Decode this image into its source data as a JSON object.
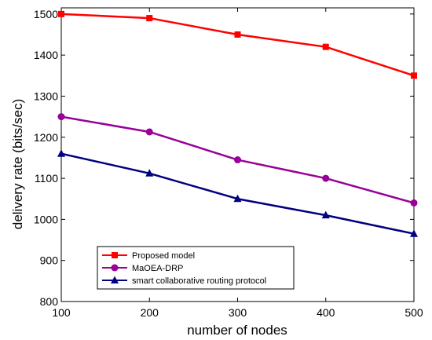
{
  "chart_data": {
    "type": "line",
    "title": "",
    "xlabel": "number of nodes",
    "ylabel": "delivery rate (bits/sec)",
    "x": [
      100,
      200,
      300,
      400,
      500
    ],
    "xlim": [
      100,
      500
    ],
    "ylim": [
      800,
      1500
    ],
    "xticks": [
      "100",
      "200",
      "300",
      "400",
      "500"
    ],
    "yticks": [
      "800",
      "900",
      "1000",
      "1100",
      "1200",
      "1300",
      "1400",
      "1500"
    ],
    "grid": false,
    "legend_position": "bottom-left",
    "series": [
      {
        "name": "Proposed model",
        "values": [
          1500,
          1490,
          1450,
          1420,
          1350
        ],
        "color": "#ff0000",
        "marker": "square"
      },
      {
        "name": "MaOEA-DRP",
        "values": [
          1250,
          1213,
          1145,
          1100,
          1040
        ],
        "color": "#990099",
        "marker": "circle"
      },
      {
        "name": "smart collaborative routing protocol",
        "values": [
          1160,
          1112,
          1050,
          1010,
          965
        ],
        "color": "#000080",
        "marker": "triangle"
      }
    ]
  }
}
